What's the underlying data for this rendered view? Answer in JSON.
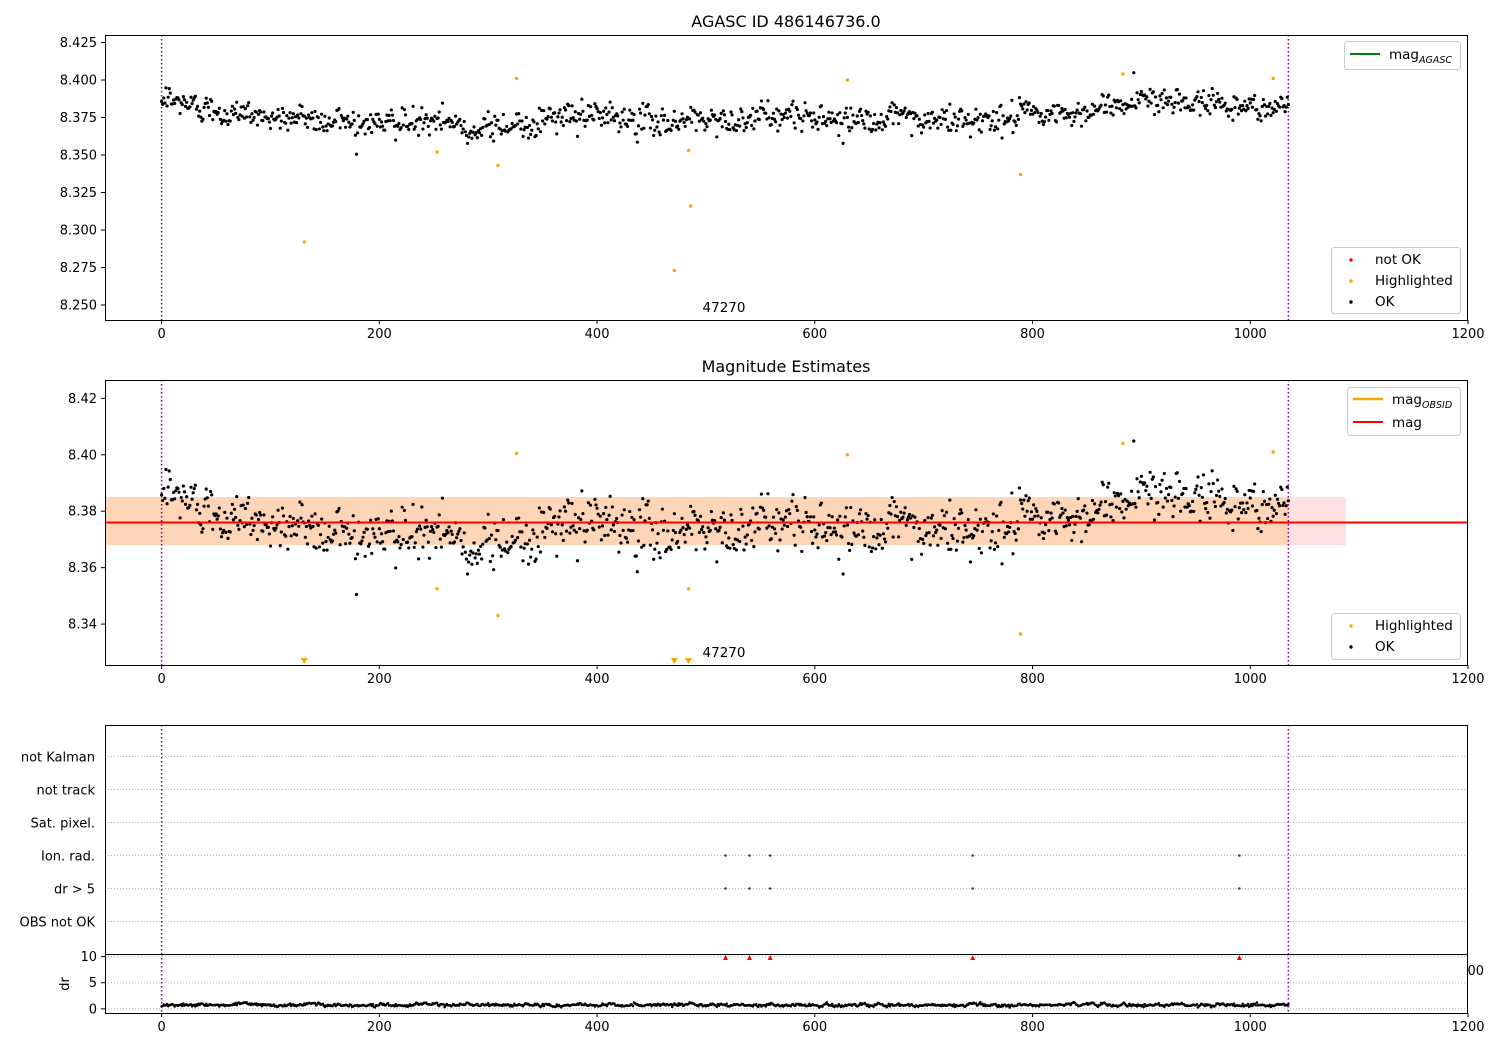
{
  "chart_data": [
    {
      "type": "scatter",
      "panel": "agasc",
      "title": "AGASC ID 486146736.0",
      "xlim": [
        -52,
        1200
      ],
      "ylim": [
        8.24,
        8.43
      ],
      "xticks": [
        0,
        200,
        400,
        600,
        800,
        1000,
        1200
      ],
      "yticks": [
        8.25,
        8.275,
        8.3,
        8.325,
        8.35,
        8.375,
        8.4,
        8.425
      ],
      "ytick_decimals": 3,
      "vlines": [
        0,
        1035
      ],
      "annotation": {
        "text": "47270",
        "x": 500,
        "y": 8.247
      },
      "legend_upper": [
        {
          "label": "mag",
          "sub": "AGASC",
          "color": "#008000",
          "kind": "line"
        }
      ],
      "legend_lower": [
        {
          "label": "not OK",
          "color": "#ff0000",
          "kind": "dot"
        },
        {
          "label": "Highlighted",
          "color": "#ffa500",
          "kind": "dot"
        },
        {
          "label": "OK",
          "color": "#000000",
          "kind": "dot"
        }
      ],
      "series_ok": {
        "name": "OK",
        "n_points": 1036,
        "x_range": [
          0,
          1035
        ],
        "trend": [
          [
            0,
            8.386
          ],
          [
            100,
            8.375
          ],
          [
            200,
            8.372
          ],
          [
            300,
            8.369
          ],
          [
            400,
            8.376
          ],
          [
            450,
            8.372
          ],
          [
            500,
            8.374
          ],
          [
            600,
            8.376
          ],
          [
            700,
            8.372
          ],
          [
            800,
            8.376
          ],
          [
            850,
            8.378
          ],
          [
            900,
            8.389
          ],
          [
            1000,
            8.382
          ],
          [
            1035,
            8.382
          ]
        ],
        "scatter": 0.008
      },
      "highlighted": [
        [
          131,
          8.292
        ],
        [
          253,
          8.352
        ],
        [
          309,
          8.343
        ],
        [
          326,
          8.401
        ],
        [
          471,
          8.273
        ],
        [
          484,
          8.353
        ],
        [
          486,
          8.316
        ],
        [
          630,
          8.4
        ],
        [
          789,
          8.337
        ],
        [
          883,
          8.404
        ],
        [
          1021,
          8.401
        ]
      ]
    },
    {
      "type": "scatter",
      "panel": "estimates",
      "title": "Magnitude Estimates",
      "xlim": [
        -52,
        1200
      ],
      "ylim": [
        8.3255,
        8.4265
      ],
      "xticks": [
        0,
        200,
        400,
        600,
        800,
        1000,
        1200
      ],
      "yticks": [
        8.34,
        8.36,
        8.38,
        8.4,
        8.42
      ],
      "ytick_decimals": 2,
      "vlines": [
        0,
        1035
      ],
      "mag": 8.376,
      "mag_band": [
        8.368,
        8.385
      ],
      "obsid_band": {
        "x": [
          -52,
          1035
        ],
        "y": [
          8.368,
          8.385
        ]
      },
      "pink_band": {
        "x": [
          -52,
          1088
        ],
        "y": [
          8.368,
          8.385
        ]
      },
      "annotation": {
        "text": "47270",
        "x": 500,
        "y": 8.3285
      },
      "legend_upper": [
        {
          "label": "mag",
          "sub": "OBSID",
          "color": "#ffa500",
          "kind": "line"
        },
        {
          "label": "mag",
          "sub": "",
          "color": "#ff0000",
          "kind": "line"
        }
      ],
      "legend_lower": [
        {
          "label": "Highlighted",
          "color": "#ffa500",
          "kind": "dot"
        },
        {
          "label": "OK",
          "color": "#000000",
          "kind": "dot"
        }
      ],
      "highlighted": [
        [
          253,
          8.3525
        ],
        [
          309,
          8.343
        ],
        [
          326,
          8.4005
        ],
        [
          484,
          8.3525
        ],
        [
          630,
          8.4
        ],
        [
          789,
          8.3365
        ],
        [
          883,
          8.404
        ],
        [
          1021,
          8.401
        ]
      ],
      "out_of_range_markers": [
        131,
        471,
        484
      ]
    },
    {
      "type": "scatter",
      "panel": "flags",
      "xlim": [
        -52,
        1200
      ],
      "categories": [
        "OBS not OK",
        "dr > 5",
        "Ion. rad.",
        "Sat. pixel.",
        "not track",
        "not Kalman"
      ],
      "flag_x": [
        518,
        540,
        559,
        745,
        990
      ],
      "flag_rows": [
        "dr > 5",
        "Ion. rad."
      ],
      "vlines": [
        0,
        1035
      ]
    },
    {
      "type": "scatter",
      "panel": "dr",
      "xlim": [
        -52,
        1200
      ],
      "ylim": [
        -0.8,
        10.5
      ],
      "ylabel": "dr",
      "yticks": [
        0,
        5,
        10
      ],
      "xticks": [
        0,
        200,
        400,
        600,
        800,
        1000,
        1200
      ],
      "vlines": [
        0,
        1035
      ],
      "clipped_markers": [
        518,
        540,
        559,
        745,
        990
      ],
      "stray_tick": "00"
    }
  ]
}
